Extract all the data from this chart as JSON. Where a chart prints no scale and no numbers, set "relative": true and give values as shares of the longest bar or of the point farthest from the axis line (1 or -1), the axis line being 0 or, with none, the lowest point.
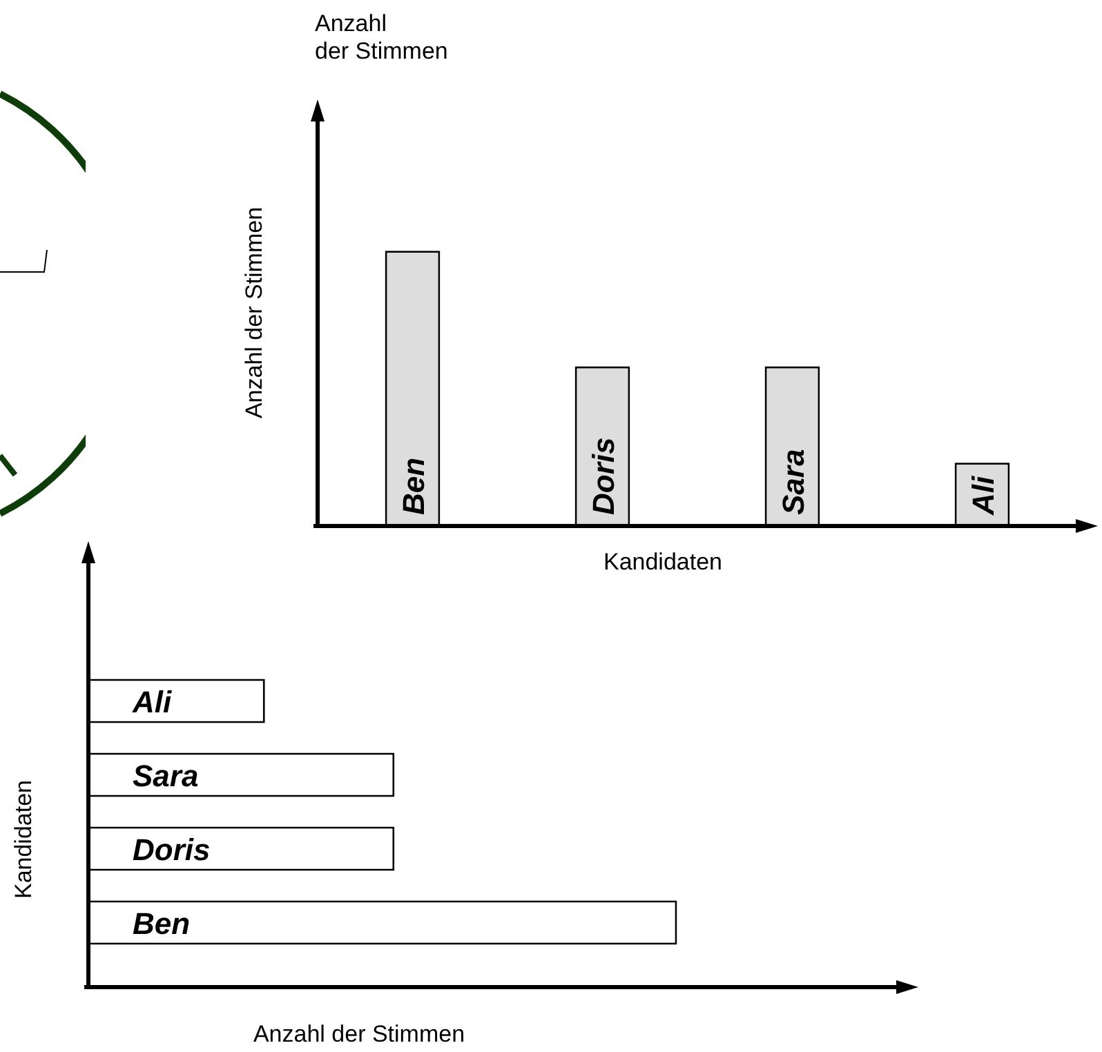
{
  "chart_data": [
    {
      "type": "bar",
      "categories": [
        "Ben",
        "Doris",
        "Sara",
        "Ali"
      ],
      "relative": true,
      "values": [
        1,
        0.58,
        0.58,
        0.23
      ],
      "color": "#dddddd",
      "xlabel": "Kandidaten",
      "ylabel": "Anzahl der Stimmen",
      "annotations": [
        "Anzahl der Stimmen"
      ],
      "grid": false,
      "legend": false
    },
    {
      "type": "bar",
      "orientation": "horizontal",
      "categories": [
        "Ali",
        "Sara",
        "Doris",
        "Ben"
      ],
      "relative": true,
      "values": [
        0.3,
        0.52,
        0.52,
        1
      ],
      "color": "#ffffff",
      "xlabel": "Anzahl der Stimmen",
      "ylabel": "Kandidaten",
      "grid": false,
      "legend": false
    }
  ]
}
